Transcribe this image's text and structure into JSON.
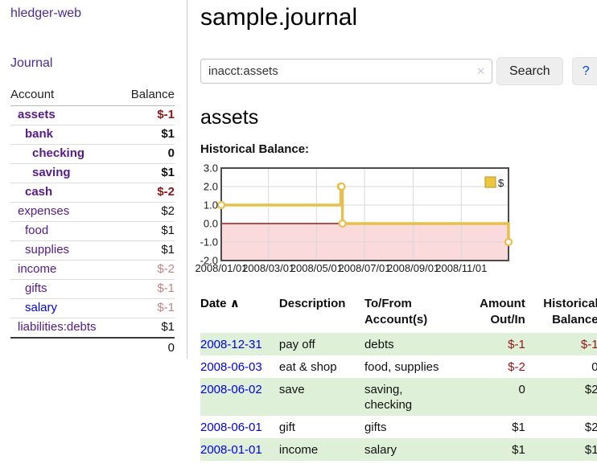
{
  "sidebar": {
    "brand": "hledger-web",
    "nav_journal": "Journal",
    "accounts": {
      "header_account": "Account",
      "header_balance": "Balance",
      "rows": [
        {
          "name": "assets",
          "level": 1,
          "bold": true,
          "blue": false,
          "balance": "$-1",
          "balance_negative": true,
          "balance_faded": false
        },
        {
          "name": "bank",
          "level": 2,
          "bold": true,
          "blue": false,
          "balance": "$1",
          "balance_negative": false,
          "balance_faded": false
        },
        {
          "name": "checking",
          "level": 3,
          "bold": true,
          "blue": false,
          "balance": "0",
          "balance_negative": false,
          "balance_faded": false
        },
        {
          "name": "saving",
          "level": 3,
          "bold": true,
          "blue": false,
          "balance": "$1",
          "balance_negative": false,
          "balance_faded": false
        },
        {
          "name": "cash",
          "level": 2,
          "bold": true,
          "blue": false,
          "balance": "$-2",
          "balance_negative": true,
          "balance_faded": false
        },
        {
          "name": "expenses",
          "level": 1,
          "bold": false,
          "blue": false,
          "balance": "$2",
          "balance_negative": false,
          "balance_faded": false
        },
        {
          "name": "food",
          "level": 2,
          "bold": false,
          "blue": false,
          "balance": "$1",
          "balance_negative": false,
          "balance_faded": false
        },
        {
          "name": "supplies",
          "level": 2,
          "bold": false,
          "blue": false,
          "balance": "$1",
          "balance_negative": false,
          "balance_faded": false
        },
        {
          "name": "income",
          "level": 1,
          "bold": false,
          "blue": false,
          "balance": "$-2",
          "balance_negative": false,
          "balance_faded": true
        },
        {
          "name": "gifts",
          "level": 2,
          "bold": false,
          "blue": false,
          "balance": "$-1",
          "balance_negative": false,
          "balance_faded": true
        },
        {
          "name": "salary",
          "level": 2,
          "bold": false,
          "blue": true,
          "balance": "$-1",
          "balance_negative": false,
          "balance_faded": true
        },
        {
          "name": "liabilities:debts",
          "level": 1,
          "bold": false,
          "blue": false,
          "balance": "$1",
          "balance_negative": false,
          "balance_faded": false
        }
      ],
      "total": "0"
    }
  },
  "main": {
    "title": "sample.journal",
    "search": {
      "value": "inacct:assets",
      "clear_icon": "✕",
      "button_label": "Search",
      "help_label": "?"
    },
    "account_heading": "assets",
    "chart_label": "Historical Balance:"
  },
  "chart_data": {
    "type": "line",
    "step": true,
    "title": "Historical Balance:",
    "series": [
      {
        "name": "$",
        "x": [
          "2008/01/01",
          "2008/06/01",
          "2008/06/02",
          "2008/06/03",
          "2008/12/31"
        ],
        "values": [
          1,
          2,
          2,
          0,
          -1
        ]
      }
    ],
    "ylim": [
      -2,
      3
    ],
    "yticks": [
      3,
      2,
      1,
      0,
      -1,
      -2
    ],
    "xticks": [
      "2008/01/01",
      "2008/03/01",
      "2008/05/01",
      "2008/07/01",
      "2008/09/01",
      "2008/11/01"
    ],
    "legend": {
      "label": "$",
      "position": "top-right"
    },
    "grid": true,
    "colors": {
      "line": "#e5c04f",
      "marker_fill": "#ffffff",
      "negative_region": "#fadada",
      "zero_line": "#991b1b",
      "grid": "#d8d8d8",
      "border": "#4c4c4c",
      "legend_fill": "#ecc63e",
      "legend_border": "#bb962a"
    }
  },
  "register": {
    "headers": {
      "date": "Date",
      "sort_icon": "∧",
      "description": "Description",
      "tofrom_line1": "To/From",
      "tofrom_line2": "Account(s)",
      "amount_line1": "Amount",
      "amount_line2": "Out/In",
      "hist_line1": "Historical",
      "hist_line2": "Balance"
    },
    "rows": [
      {
        "date": "2008-12-31",
        "description": "pay off",
        "accounts": "debts",
        "amount": "$-1",
        "amount_negative": true,
        "balance": "$-1",
        "balance_negative": true
      },
      {
        "date": "2008-06-03",
        "description": "eat & shop",
        "accounts": "food, supplies",
        "amount": "$-2",
        "amount_negative": true,
        "balance": "0",
        "balance_negative": false
      },
      {
        "date": "2008-06-02",
        "description": "save",
        "accounts": "saving, checking",
        "amount": "0",
        "amount_negative": false,
        "balance": "$2",
        "balance_negative": false
      },
      {
        "date": "2008-06-01",
        "description": "gift",
        "accounts": "gifts",
        "amount": "$1",
        "amount_negative": false,
        "balance": "$2",
        "balance_negative": false
      },
      {
        "date": "2008-01-01",
        "description": "income",
        "accounts": "salary",
        "amount": "$1",
        "amount_negative": false,
        "balance": "$1",
        "balance_negative": false
      }
    ]
  }
}
